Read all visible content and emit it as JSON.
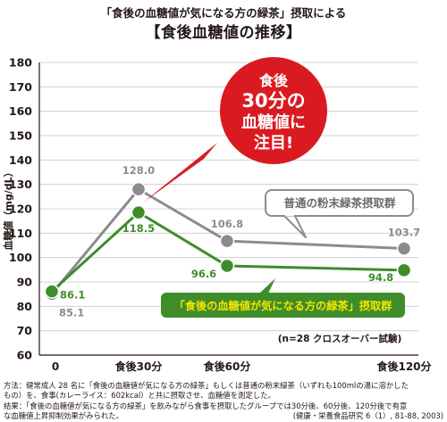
{
  "header": {
    "subtitle": "「食後の血糖値が気になる方の緑茶」摂取による",
    "title": "【食後血糖値の推移】"
  },
  "callout": {
    "lines": [
      "食後",
      "30分の",
      "血糖値に",
      "注目!"
    ]
  },
  "colors": {
    "green": "#3e8d2a",
    "gray": "#8c8c8c",
    "red": "#d91b21",
    "green_label_bg": "#3e8d2a",
    "green_label_text": "#f5e400"
  },
  "chart_data": {
    "type": "line",
    "ylabel": "血糖値（mg/dL）",
    "ylim": [
      60,
      180
    ],
    "yticks": [
      "60",
      "70",
      "80",
      "90",
      "100",
      "110",
      "120",
      "130",
      "140",
      "150",
      "160",
      "170",
      "180"
    ],
    "x": [
      0,
      30,
      60,
      120
    ],
    "xtick_labels": [
      "0",
      "食後30分",
      "食後60分",
      "食後120分"
    ],
    "series": [
      {
        "name": "普通の粉末緑茶摂取群",
        "color": "#8c8c8c",
        "values": [
          85.1,
          128.0,
          106.8,
          103.7
        ],
        "value_labels": [
          "85.1",
          "128.0",
          "106.8",
          "103.7"
        ]
      },
      {
        "name": "「食後の血糖値が気になる方の緑茶」摂取群",
        "color": "#3e8d2a",
        "values": [
          86.1,
          118.5,
          96.6,
          94.8
        ],
        "value_labels": [
          "86.1",
          "118.5",
          "96.6",
          "94.8"
        ]
      }
    ],
    "annotation": "(n=28 クロスオーバー試験)"
  },
  "notes": {
    "line1": "方法：健常成人 28 名に「食後の血糖値が気になる方の緑茶」もしくは普通の粉末緑茶（いずれも100mlの湯に溶かした",
    "line2": "もの）を、食事(カレーライス：602kcal）と共に摂取させ、血糖値を測定した。",
    "line3": "結果：「食後の血糖値が気になる方の緑茶」を飲みながら食事を摂取したグループでは30分後、60分後、120分後で有意",
    "line4": "な血糖値上昇抑制効果がみられた。",
    "source": "(健康・栄養食品研究 6（1）, 81-88, 2003)"
  }
}
